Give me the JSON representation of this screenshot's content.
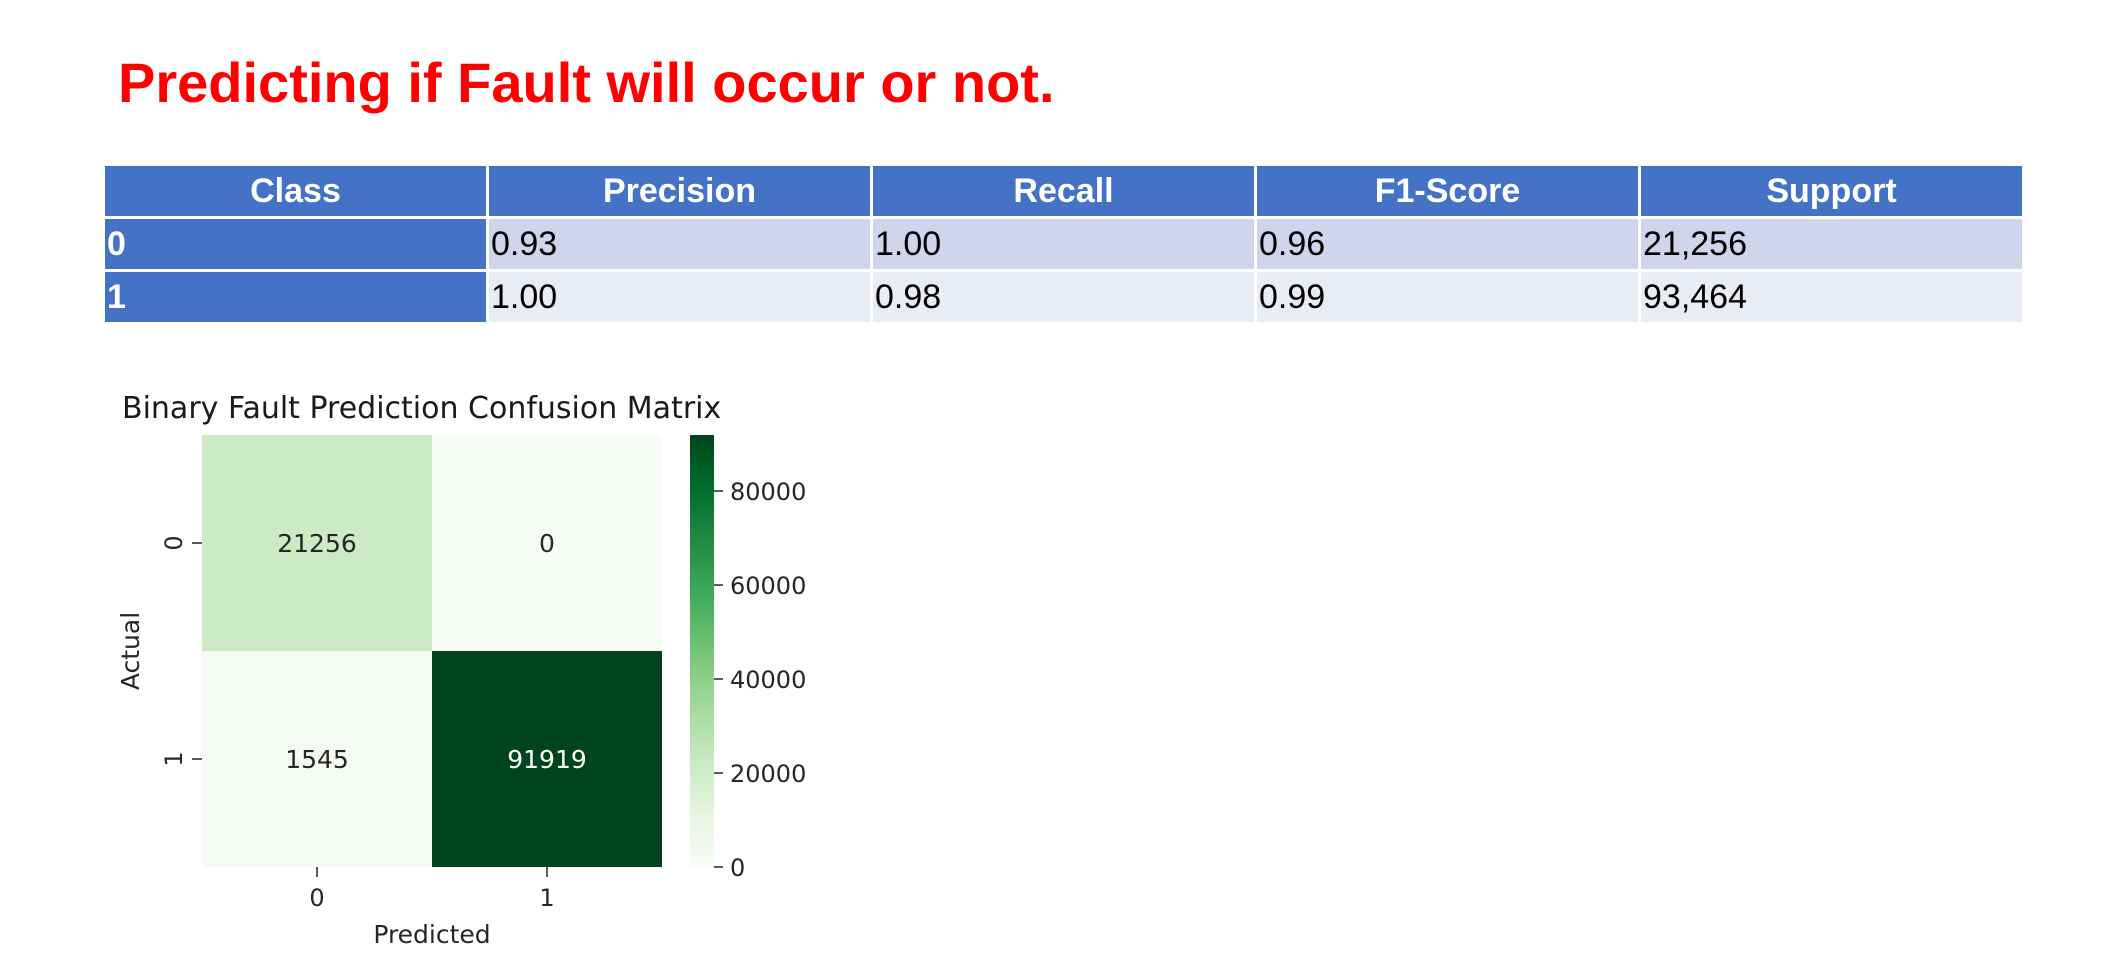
{
  "title": "Predicting if Fault will occur or not.",
  "report": {
    "headers": [
      "Class",
      "Precision",
      "Recall",
      "F1-Score",
      "Support"
    ],
    "rows": [
      {
        "cls": "0",
        "precision": "0.93",
        "recall": "1.00",
        "f1": "0.96",
        "support": "21,256"
      },
      {
        "cls": "1",
        "precision": "1.00",
        "recall": "0.98",
        "f1": "0.99",
        "support": "93,464"
      }
    ]
  },
  "chart_data": {
    "type": "heatmap",
    "title": "Binary Fault Prediction Confusion Matrix",
    "xlabel": "Predicted",
    "ylabel": "Actual",
    "x_categories": [
      "0",
      "1"
    ],
    "y_categories": [
      "0",
      "1"
    ],
    "values": [
      [
        21256,
        0
      ],
      [
        1545,
        91919
      ]
    ],
    "colormap": "Greens",
    "colorbar": {
      "range": [
        0,
        91919
      ],
      "ticks": [
        0,
        20000,
        40000,
        60000,
        80000
      ]
    }
  },
  "colors": {
    "title": "#ff0000",
    "header_bg": "#4472c4",
    "row0_bg": "#cfd5ea",
    "row1_bg": "#e9ebf5"
  }
}
